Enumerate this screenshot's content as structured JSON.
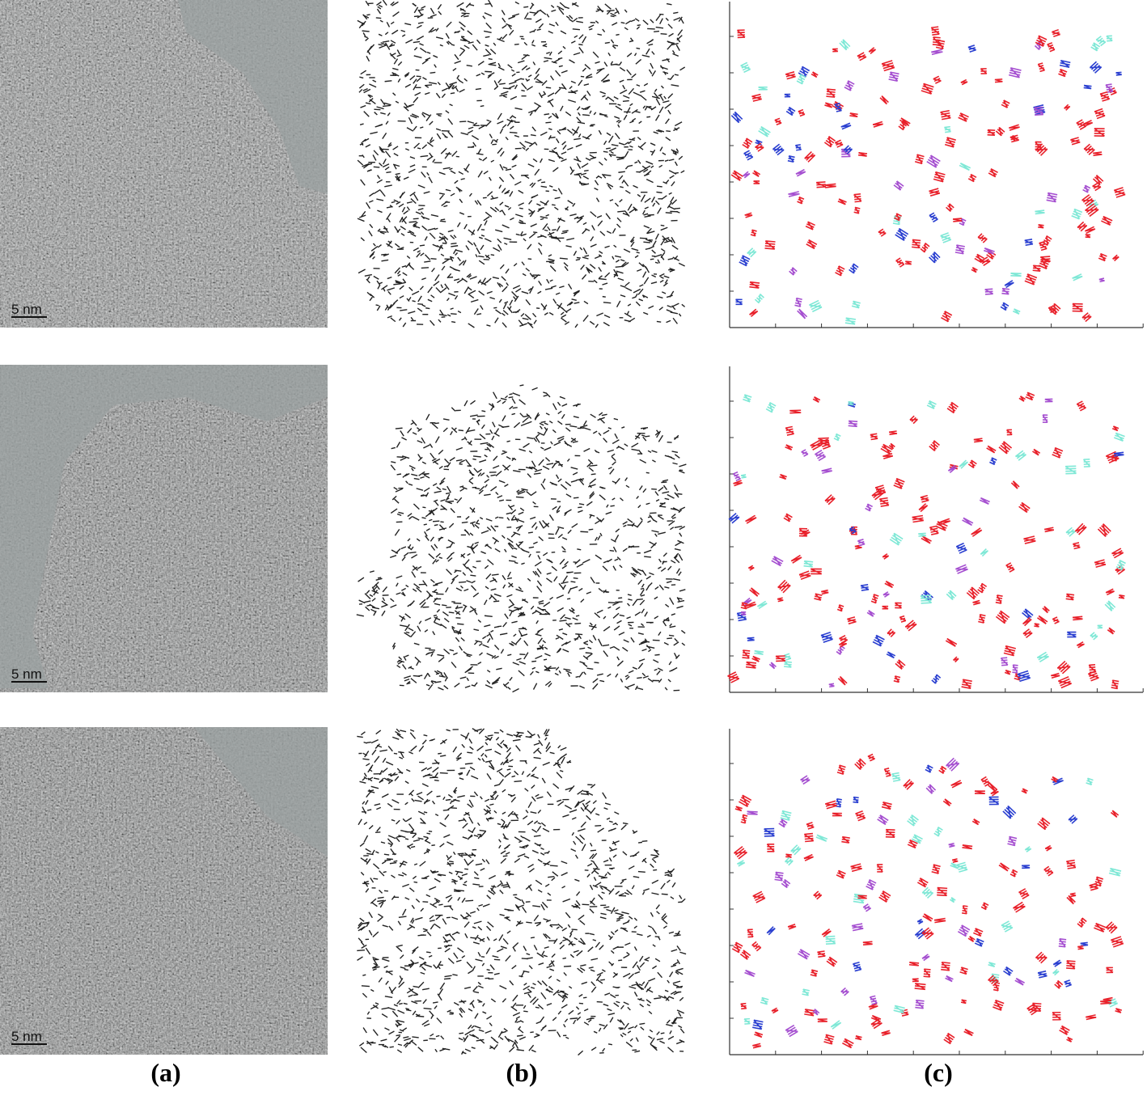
{
  "panels": {
    "a": {
      "label": "(a)",
      "scale_bars": [
        "5 nm",
        "5 nm",
        "5 nm"
      ]
    },
    "b": {
      "label": "(b)"
    },
    "c": {
      "label": "(c)"
    }
  }
}
